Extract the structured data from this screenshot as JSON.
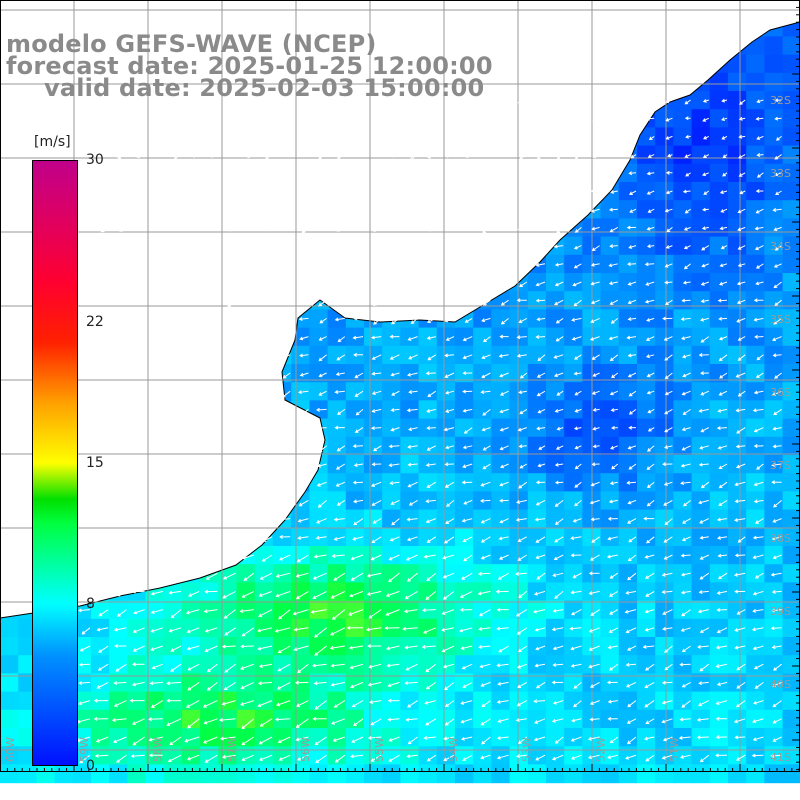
{
  "title": {
    "line1": "modelo GEFS-WAVE (NCEP)",
    "line2": "forecast date: 2025-01-25 12:00:00",
    "line3": "valid date: 2025-02-03 15:00:00"
  },
  "colorbar": {
    "unit": "[m/s]",
    "ticks": [
      {
        "label": "30",
        "value": 30
      },
      {
        "label": "22",
        "value": 22
      },
      {
        "label": "15",
        "value": 15
      },
      {
        "label": "8",
        "value": 8
      },
      {
        "label": "0",
        "value": 0
      }
    ],
    "min": 0,
    "max": 30
  },
  "colors": {
    "field_low": "#0010ff",
    "field_mid": "#00e0ff",
    "field_high": "#40ff00",
    "land": "#ffffff",
    "coastline": "#000000",
    "grid": "#999999",
    "arrows": "#ffffff",
    "title": "#8a8a8a"
  },
  "lat_labels": [
    "32S",
    "33S",
    "34S",
    "35S",
    "36S",
    "37S",
    "38S",
    "39S",
    "40S",
    "41S"
  ],
  "lon_labels": [
    "60W",
    "59W",
    "58W",
    "57W",
    "56W",
    "55W",
    "54W",
    "53W",
    "52W",
    "51W"
  ]
}
